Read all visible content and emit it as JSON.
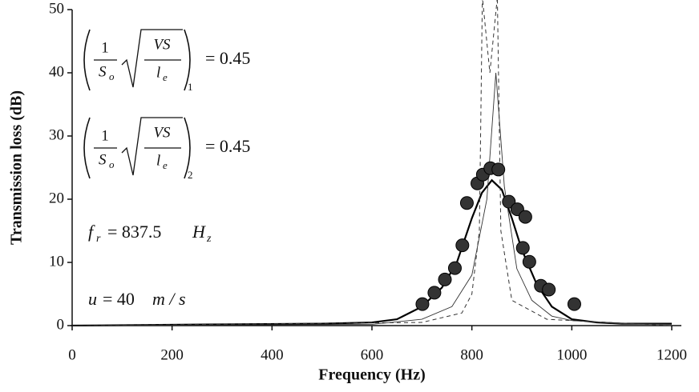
{
  "chart_data": {
    "type": "scatter",
    "xlabel": "Frequency (Hz)",
    "ylabel": "Transmission loss (dB)",
    "xlim": [
      0,
      1200
    ],
    "ylim": [
      0,
      50
    ],
    "xticks": [
      0,
      200,
      400,
      600,
      800,
      1000,
      1200
    ],
    "yticks": [
      0,
      10,
      20,
      30,
      40,
      50
    ],
    "annotations": [
      {
        "numerator": "1",
        "denominator": "S",
        "denominator_sub": "o",
        "radicand_top": "VS",
        "radicand_bottom": "l",
        "radicand_sub": "e",
        "subscript": "1",
        "rhs": "= 0.45"
      },
      {
        "numerator": "1",
        "denominator": "S",
        "denominator_sub": "o",
        "radicand_top": "VS",
        "radicand_bottom": "l",
        "radicand_sub": "e",
        "subscript": "2",
        "rhs": "= 0.45"
      },
      {
        "symbol": "f",
        "sub": "r",
        "rhs": "= 837.5",
        "unit": "H",
        "unit_sub": "z"
      },
      {
        "symbol": "u",
        "rhs": "= 40",
        "unit": "m / s"
      }
    ],
    "series": [
      {
        "style": "marker",
        "color": "#333333",
        "x": [
          701,
          725,
          746,
          766,
          781,
          790,
          811,
          822,
          837,
          853,
          874,
          891,
          907,
          902,
          915,
          938,
          954,
          1005
        ],
        "values": [
          3.4,
          5.2,
          7.3,
          9.1,
          12.7,
          19.4,
          22.5,
          23.9,
          24.9,
          24.7,
          19.6,
          18.4,
          17.2,
          12.3,
          10.1,
          6.3,
          5.7,
          3.4
        ]
      },
      {
        "style": "solid",
        "color": "#000000",
        "x": [
          0,
          300,
          500,
          600,
          650,
          700,
          740,
          770,
          800,
          820,
          840,
          860,
          880,
          900,
          930,
          960,
          1000,
          1050,
          1100,
          1200
        ],
        "values": [
          0,
          0.2,
          0.3,
          0.5,
          1,
          3,
          6,
          10,
          17,
          21,
          23,
          21.5,
          17,
          12,
          6.5,
          3,
          1,
          0.5,
          0.3,
          0.3
        ]
      },
      {
        "style": "thin",
        "color": "#333333",
        "x": [
          0,
          600,
          700,
          760,
          800,
          830,
          848,
          865,
          890,
          920,
          960,
          1000,
          1100,
          1200
        ],
        "values": [
          0,
          0.2,
          1,
          3,
          8,
          20,
          40,
          22,
          9,
          4,
          1.5,
          0.8,
          0.3,
          0.2
        ]
      },
      {
        "style": "dashed",
        "color": "#333333",
        "x": [
          0,
          700,
          780,
          800,
          815,
          821,
          836,
          851,
          858,
          880,
          950,
          1200
        ],
        "values": [
          0,
          0.5,
          2,
          5,
          15,
          52,
          40,
          52,
          15,
          4,
          1,
          0
        ]
      }
    ]
  }
}
